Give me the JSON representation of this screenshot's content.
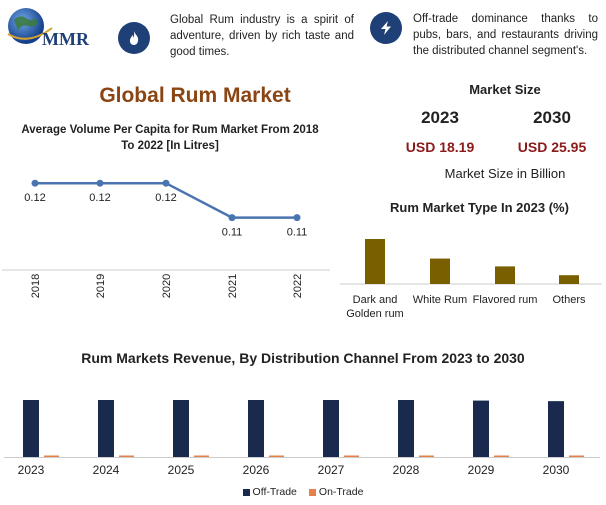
{
  "brand": {
    "logo_text": "MMR"
  },
  "facts": [
    {
      "icon": "flame-icon",
      "text": "Global Rum industry is a spirit of adventure, driven by rich taste and good times."
    },
    {
      "icon": "lightning-icon",
      "text": "Off-trade dominance thanks to pubs, bars, and restaurants driving the distributed channel segment's."
    }
  ],
  "title": "Global Rum Market",
  "market_size": {
    "label": "Market Size",
    "years": [
      "2023",
      "2030"
    ],
    "values": [
      "USD 18.19",
      "USD 25.95"
    ],
    "unit": "Market Size in Billion"
  },
  "colors": {
    "navy": "#1a2a4f",
    "orange": "#e8804a",
    "olive": "#7a5f00",
    "line": "#4a74b0",
    "title_brown": "#8b4513",
    "value_red": "#8b1a1a"
  },
  "chart_data": [
    {
      "type": "line",
      "title": "Average Volume Per Capita for Rum Market From 2018 To 2022 [In Litres]",
      "x": [
        "2018",
        "2019",
        "2020",
        "2021",
        "2022"
      ],
      "values": [
        0.12,
        0.12,
        0.12,
        0.11,
        0.11
      ],
      "labels": [
        "0.12",
        "0.12",
        "0.12",
        "0.11",
        "0.11"
      ],
      "ylim": [
        0.1,
        0.125
      ]
    },
    {
      "type": "bar",
      "title": "Rum Market Type In 2023 (%)",
      "categories": [
        "Dark and Golden rum",
        "White Rum",
        "Flavored rum",
        "Others"
      ],
      "values": [
        46,
        26,
        18,
        9
      ]
    },
    {
      "type": "bar",
      "title": "Rum Markets Revenue, By Distribution Channel From 2023 to 2030",
      "categories": [
        "2023",
        "2024",
        "2025",
        "2026",
        "2027",
        "2028",
        "2029",
        "2030"
      ],
      "series": [
        {
          "name": "Off-Trade",
          "values": [
            100,
            100,
            100,
            100,
            100,
            100,
            99,
            98
          ]
        },
        {
          "name": "On-Trade",
          "values": [
            1,
            1,
            1,
            1,
            1,
            1,
            2,
            2
          ]
        }
      ]
    }
  ]
}
